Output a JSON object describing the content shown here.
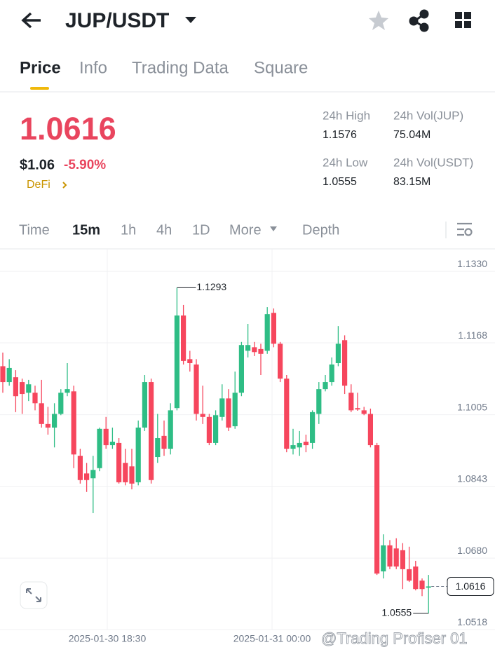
{
  "header": {
    "pair": "JUP/USDT"
  },
  "tabs": [
    "Price",
    "Info",
    "Trading Data",
    "Square"
  ],
  "summary": {
    "price": "1.0616",
    "usd": "$1.06",
    "change": "-5.90%",
    "tag": "DeFi",
    "stats": [
      {
        "label": "24h High",
        "value": "1.1576"
      },
      {
        "label": "24h Vol(JUP)",
        "value": "75.04M"
      },
      {
        "label": "24h Low",
        "value": "1.0555"
      },
      {
        "label": "24h Vol(USDT)",
        "value": "83.15M"
      }
    ]
  },
  "intervals": [
    "Time",
    "15m",
    "1h",
    "4h",
    "1D",
    "More",
    "Depth"
  ],
  "chart": {
    "type": "candlestick",
    "up_color": "#2ebd85",
    "down_color": "#f6465d",
    "ylim": [
      1.0515,
      1.1381
    ],
    "yticks": [
      {
        "value": 1.133,
        "label": "1.1330"
      },
      1.1168,
      1.1005,
      1.0843,
      {
        "value": 1.068,
        "label": "1.0680"
      },
      1.0518
    ],
    "x_labels": [
      "2025-01-30 18:30",
      "2025-01-31 00:00"
    ],
    "high_label": 1.1293,
    "low_label": 1.0555,
    "last_price": 1.0616,
    "candles": [
      [
        1.1115,
        1.1146,
        1.1055,
        1.1079
      ],
      [
        1.1079,
        1.1131,
        1.1071,
        1.1111
      ],
      [
        1.109,
        1.1106,
        1.1011,
        1.1047
      ],
      [
        1.1079,
        1.1087,
        1.1007,
        1.1052
      ],
      [
        1.1055,
        1.1084,
        1.1036,
        1.1074
      ],
      [
        1.1055,
        1.1071,
        1.1015,
        1.1031
      ],
      [
        1.1031,
        1.1084,
        1.0976,
        1.0984
      ],
      [
        1.0984,
        1.1023,
        1.096,
        1.0976
      ],
      [
        1.0976,
        1.1031,
        1.0931,
        1.1007
      ],
      [
        1.1007,
        1.1063,
        1.1004,
        1.1055
      ],
      [
        1.1055,
        1.1122,
        1.1047,
        1.1063
      ],
      [
        1.1058,
        1.1071,
        1.0884,
        1.0915
      ],
      [
        1.0912,
        1.0928,
        1.0849,
        1.0857
      ],
      [
        1.0872,
        1.0896,
        1.083,
        1.0857
      ],
      [
        1.0861,
        1.0912,
        1.0782,
        1.088
      ],
      [
        1.0884,
        1.0976,
        1.0877,
        1.0973
      ],
      [
        1.0973,
        1.1,
        1.0928,
        1.0936
      ],
      [
        1.0936,
        1.0976,
        1.0928,
        1.0944
      ],
      [
        1.0941,
        1.0952,
        1.0849,
        1.0852
      ],
      [
        1.0896,
        1.0928,
        1.0845,
        1.0852
      ],
      [
        1.0888,
        1.0928,
        1.0836,
        1.0849
      ],
      [
        1.0852,
        1.0992,
        1.0845,
        1.0976
      ],
      [
        1.0976,
        1.1095,
        1.0968,
        1.1079
      ],
      [
        1.1079,
        1.1087,
        1.0849,
        1.0857
      ],
      [
        1.0909,
        1.1007,
        1.0896,
        1.0952
      ],
      [
        1.0957,
        1.0992,
        1.0912,
        1.0928
      ],
      [
        1.0928,
        1.1031,
        1.0915,
        1.1015
      ],
      [
        1.102,
        1.1293,
        1.1015,
        1.123
      ],
      [
        1.123,
        1.1254,
        1.1119,
        1.1127
      ],
      [
        1.1131,
        1.115,
        1.1103,
        1.1122
      ],
      [
        1.1119,
        1.1131,
        1.0992,
        1.1007
      ],
      [
        1.1007,
        1.1071,
        1.0984,
        1.1
      ],
      [
        1.1,
        1.1007,
        1.0936,
        1.0941
      ],
      [
        1.0941,
        1.1015,
        1.0936,
        1.1004
      ],
      [
        1.1,
        1.1074,
        1.0992,
        1.1042
      ],
      [
        1.1042,
        1.1063,
        1.0968,
        1.0976
      ],
      [
        1.0979,
        1.1103,
        1.0973,
        1.1055
      ],
      [
        1.1055,
        1.117,
        1.1047,
        1.1163
      ],
      [
        1.115,
        1.1211,
        1.1135,
        1.1163
      ],
      [
        1.1158,
        1.117,
        1.1138,
        1.1147
      ],
      [
        1.1154,
        1.1166,
        1.1095,
        1.1143
      ],
      [
        1.115,
        1.1249,
        1.1143,
        1.1233
      ],
      [
        1.1236,
        1.1246,
        1.1158,
        1.1166
      ],
      [
        1.1166,
        1.117,
        1.1079,
        1.1087
      ],
      [
        1.1087,
        1.1095,
        1.092,
        1.0928
      ],
      [
        1.0928,
        1.0973,
        1.0915,
        1.0936
      ],
      [
        1.0931,
        1.0968,
        1.0912,
        1.0941
      ],
      [
        1.0944,
        1.096,
        1.092,
        1.0936
      ],
      [
        1.0941,
        1.1015,
        1.0928,
        1.1011
      ],
      [
        1.1007,
        1.1079,
        1.0984,
        1.1063
      ],
      [
        1.1063,
        1.1095,
        1.1058,
        1.1079
      ],
      [
        1.1079,
        1.1135,
        1.1071,
        1.1119
      ],
      [
        1.1122,
        1.1206,
        1.1115,
        1.1166
      ],
      [
        1.1174,
        1.1185,
        1.1052,
        1.1071
      ],
      [
        1.1055,
        1.1074,
        1.1011,
        1.1015
      ],
      [
        1.102,
        1.1055,
        1.1014,
        1.1017
      ],
      [
        1.1015,
        1.1023,
        1.1004,
        1.1007
      ],
      [
        1.1007,
        1.1019,
        1.0931,
        1.0936
      ],
      [
        1.0936,
        1.0941,
        1.0642,
        1.0645
      ],
      [
        1.065,
        1.0734,
        1.0634,
        1.0709
      ],
      [
        1.0709,
        1.0721,
        1.0655,
        1.0661
      ],
      [
        1.0702,
        1.0725,
        1.0655,
        1.0661
      ],
      [
        1.0698,
        1.0714,
        1.061,
        1.0655
      ],
      [
        1.0655,
        1.0706,
        1.0626,
        1.0629
      ],
      [
        1.0661,
        1.0674,
        1.0607,
        1.061
      ],
      [
        1.0629,
        1.0634,
        1.0594,
        1.061
      ],
      [
        1.0613,
        1.0642,
        1.0555,
        1.0616
      ]
    ]
  },
  "watermark": "@Trading Profiser 01"
}
